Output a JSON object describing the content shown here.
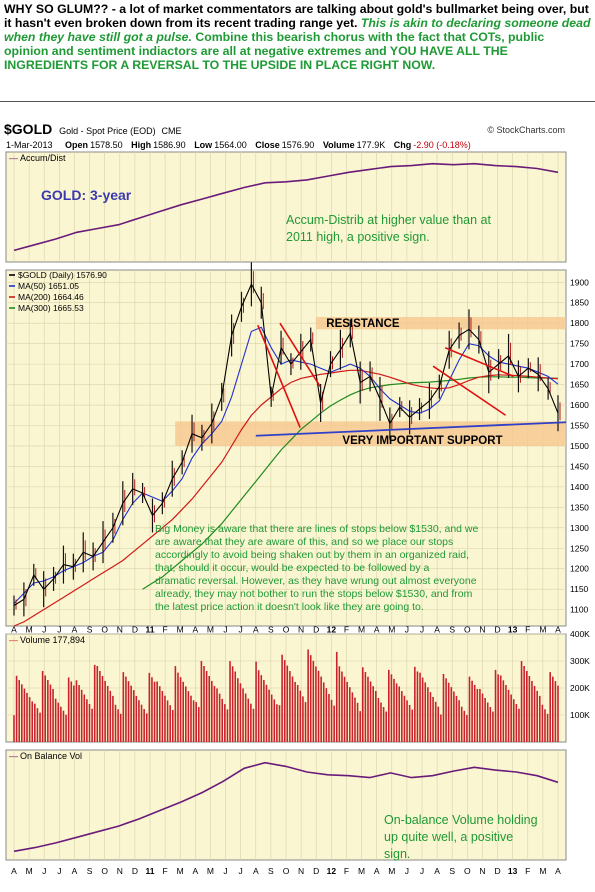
{
  "intro": {
    "line1": "WHY SO GLUM?? - a lot of market commentators are talking about gold's bullmarket being over, but it hasn't even broken down from its recent trading range yet.",
    "line1_italic": "This is akin to declaring someone dead when they have still got a pulse.",
    "line2": "Combine this bearish chorus with the fact that COTs, public opinion and sentiment indiactors are all at negative extremes and YOU HAVE ALL THE INGREDIENTS FOR A REVERSAL TO THE UPSIDE IN PLACE RIGHT NOW."
  },
  "header": {
    "symbol": "$GOLD",
    "name": "Gold - Spot Price (EOD)",
    "exchange": "CME",
    "date": "1-Mar-2013",
    "open_label": "Open",
    "open": "1578.50",
    "high_label": "High",
    "high": "1586.90",
    "low_label": "Low",
    "low": "1564.00",
    "close_label": "Close",
    "close": "1576.90",
    "volume_label": "Volume",
    "volume": "177.9K",
    "chg_label": "Chg",
    "chg": "-2.90 (-0.18%)",
    "credit": "© StockCharts.com"
  },
  "colors": {
    "panel_bg": "#fbf6d2",
    "price": "#000000",
    "ma50": "#1f2fd1",
    "ma200": "#d01818",
    "ma300": "#1e8a1e",
    "accum": "#6a1b7a",
    "obv": "#6a1b7a",
    "volume_bar": "#c8232b",
    "annotation_green": "#1f9a35",
    "band": "#f6c78d",
    "support_line": "#3040c8",
    "channel_red": "#e01010"
  },
  "chart_data": [
    {
      "type": "line",
      "panel": "accum_dist",
      "title": "Accum/Dist",
      "x_months": 27,
      "series": [
        {
          "name": "Accum/Dist",
          "values": [
            8,
            14,
            20,
            27,
            31,
            35,
            42,
            49,
            56,
            62,
            68,
            74,
            79,
            80,
            82,
            86,
            90,
            93,
            96,
            97,
            99,
            98,
            99,
            97,
            96,
            94,
            90
          ]
        }
      ],
      "annotation": "Accum-Distrib at higher value than at 2011 high, a positive sign.",
      "label": "GOLD: 3-year"
    },
    {
      "type": "line",
      "panel": "price",
      "title": "$GOLD (Daily) 1576.90",
      "ylim": [
        1060,
        1930
      ],
      "yticks": [
        1100,
        1150,
        1200,
        1250,
        1300,
        1350,
        1400,
        1450,
        1500,
        1550,
        1600,
        1650,
        1700,
        1750,
        1800,
        1850,
        1900
      ],
      "x_months": 27,
      "series": [
        {
          "name": "$GOLD (Daily) 1576.90",
          "values": [
            1110,
            1125,
            1185,
            1150,
            1175,
            1210,
            1205,
            1240,
            1230,
            1265,
            1300,
            1360,
            1395,
            1385,
            1330,
            1360,
            1420,
            1460,
            1530,
            1520,
            1555,
            1620,
            1770,
            1840,
            1895,
            1850,
            1620,
            1740,
            1700,
            1730,
            1760,
            1605,
            1700,
            1735,
            1775,
            1655,
            1670,
            1615,
            1555,
            1595,
            1570,
            1590,
            1610,
            1645,
            1735,
            1770,
            1785,
            1760,
            1680,
            1700,
            1720,
            1670,
            1690,
            1675,
            1640,
            1580
          ]
        },
        {
          "name": "MA(50) 1651.05",
          "values": [
            1115,
            1140,
            1165,
            1170,
            1180,
            1195,
            1205,
            1215,
            1230,
            1240,
            1270,
            1320,
            1360,
            1385,
            1375,
            1365,
            1390,
            1420,
            1470,
            1505,
            1530,
            1560,
            1620,
            1700,
            1780,
            1790,
            1740,
            1700,
            1710,
            1705,
            1700,
            1690,
            1680,
            1690,
            1700,
            1690,
            1670,
            1640,
            1615,
            1600,
            1585,
            1580,
            1590,
            1610,
            1660,
            1710,
            1750,
            1745,
            1720,
            1705,
            1700,
            1695,
            1690,
            1680,
            1670,
            1651
          ]
        },
        {
          "name": "MA(200) 1664.46",
          "values": [
            1060,
            1070,
            1085,
            1100,
            1115,
            1130,
            1145,
            1160,
            1175,
            1190,
            1205,
            1220,
            1240,
            1260,
            1280,
            1300,
            1320,
            1345,
            1370,
            1400,
            1430,
            1460,
            1500,
            1540,
            1575,
            1600,
            1620,
            1640,
            1655,
            1665,
            1670,
            1675,
            1678,
            1682,
            1685,
            1685,
            1680,
            1675,
            1668,
            1660,
            1652,
            1646,
            1642,
            1640,
            1642,
            1650,
            1660,
            1668,
            1672,
            1674,
            1673,
            1672,
            1670,
            1668,
            1666,
            1664
          ]
        },
        {
          "name": "MA(300) 1665.53",
          "values": [
            null,
            null,
            null,
            null,
            null,
            null,
            null,
            null,
            null,
            null,
            null,
            null,
            null,
            1150,
            1165,
            1180,
            1200,
            1220,
            1240,
            1260,
            1285,
            1310,
            1340,
            1370,
            1400,
            1430,
            1460,
            1490,
            1515,
            1540,
            1560,
            1580,
            1598,
            1612,
            1625,
            1635,
            1642,
            1646,
            1650,
            1652,
            1654,
            1655,
            1656,
            1658,
            1660,
            1663,
            1666,
            1668,
            1669,
            1669,
            1668,
            1668,
            1667,
            1666,
            1666,
            1665
          ]
        }
      ],
      "legend": "top-left",
      "annotations": {
        "resistance": "RESISTANCE",
        "support": "VERY IMPORTANT SUPPORT",
        "note": "Big Money is aware that there are lines of stops below $1530, and we are aware that they are aware of this, and so we place our stops accordingly to avoid being shaken out by them in an organized raid, that, should it occur, would be expected to be followed by a dramatic reversal. However, as they have wrung out almost everyone already, they may not bother to run the stops below $1530, and from the latest price action it doesn't look like they are going to."
      }
    },
    {
      "type": "bar",
      "panel": "volume",
      "title": "Volume 177,894",
      "ylim": [
        0,
        400000
      ],
      "yticks_labels": [
        "100K",
        "200K",
        "300K",
        "400K"
      ],
      "yticks": [
        100000,
        200000,
        300000,
        400000
      ],
      "x_months": 27,
      "values": [
        180000,
        190000,
        170000,
        200000,
        210000,
        190000,
        185000,
        200000,
        195000,
        210000,
        220000,
        215000,
        205000,
        230000,
        240000,
        245000,
        220000,
        200000,
        190000,
        195000,
        205000,
        185000,
        175000,
        190000,
        200000,
        210000,
        190000
      ]
    },
    {
      "type": "line",
      "panel": "obv",
      "title": "On Balance Vol",
      "x_months": 27,
      "series": [
        {
          "name": "On Balance Vol",
          "values": [
            5,
            9,
            14,
            20,
            26,
            32,
            40,
            49,
            58,
            68,
            80,
            94,
            100,
            96,
            90,
            87,
            86,
            84,
            89,
            84,
            86,
            91,
            95,
            92,
            90,
            86,
            79
          ]
        }
      ],
      "annotation": "On-balance Volume holding up quite well, a positive sign."
    }
  ],
  "xaxis": {
    "months": [
      "A",
      "M",
      "J",
      "J",
      "A",
      "S",
      "O",
      "N",
      "D",
      "11",
      "F",
      "M",
      "A",
      "M",
      "J",
      "J",
      "A",
      "S",
      "O",
      "N",
      "D",
      "12",
      "F",
      "M",
      "A",
      "M",
      "J",
      "J",
      "A",
      "S",
      "O",
      "N",
      "D",
      "13",
      "F",
      "M",
      "A"
    ],
    "bold_years": [
      "11",
      "12",
      "13"
    ]
  }
}
